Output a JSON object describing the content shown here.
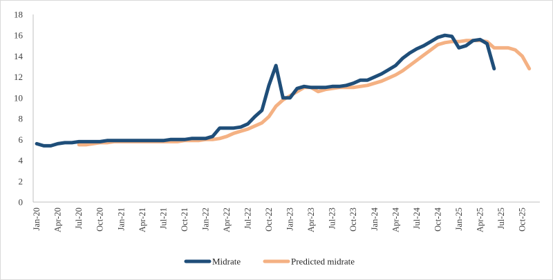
{
  "chart_data": {
    "type": "line",
    "title": "",
    "xlabel": "",
    "ylabel": "",
    "ylim": [
      0,
      18
    ],
    "yticks": [
      0,
      2,
      4,
      6,
      8,
      10,
      12,
      14,
      16,
      18
    ],
    "x_start": "2020-01",
    "x_end": "2025-12",
    "x_tick_labels": [
      "Jan-20",
      "Apr-20",
      "Jul-20",
      "Oct-20",
      "Jan-21",
      "Apr-21",
      "Jul-21",
      "Oct-21",
      "Jan-22",
      "Apr-22",
      "Jul-22",
      "Oct-22",
      "Jan-23",
      "Apr-23",
      "Jul-23",
      "Oct-23",
      "Jan-24",
      "Apr-24",
      "Jul-24",
      "Oct-24",
      "Jan-25",
      "Apr-25",
      "Jul-25",
      "Oct-25"
    ],
    "grid": false,
    "legend_position": "bottom",
    "series": [
      {
        "name": "Midrate",
        "color": "#1f4e79",
        "points": [
          [
            "2020-01",
            5.6
          ],
          [
            "2020-02",
            5.4
          ],
          [
            "2020-03",
            5.4
          ],
          [
            "2020-04",
            5.6
          ],
          [
            "2020-05",
            5.7
          ],
          [
            "2020-06",
            5.7
          ],
          [
            "2020-07",
            5.8
          ],
          [
            "2020-08",
            5.8
          ],
          [
            "2020-09",
            5.8
          ],
          [
            "2020-10",
            5.8
          ],
          [
            "2020-11",
            5.9
          ],
          [
            "2020-12",
            5.9
          ],
          [
            "2021-01",
            5.9
          ],
          [
            "2021-02",
            5.9
          ],
          [
            "2021-03",
            5.9
          ],
          [
            "2021-04",
            5.9
          ],
          [
            "2021-05",
            5.9
          ],
          [
            "2021-06",
            5.9
          ],
          [
            "2021-07",
            5.9
          ],
          [
            "2021-08",
            6.0
          ],
          [
            "2021-09",
            6.0
          ],
          [
            "2021-10",
            6.0
          ],
          [
            "2021-11",
            6.1
          ],
          [
            "2021-12",
            6.1
          ],
          [
            "2022-01",
            6.1
          ],
          [
            "2022-02",
            6.3
          ],
          [
            "2022-03",
            7.1
          ],
          [
            "2022-04",
            7.1
          ],
          [
            "2022-05",
            7.1
          ],
          [
            "2022-06",
            7.2
          ],
          [
            "2022-07",
            7.5
          ],
          [
            "2022-08",
            8.2
          ],
          [
            "2022-09",
            8.8
          ],
          [
            "2022-10",
            11.2
          ],
          [
            "2022-11",
            13.1
          ],
          [
            "2022-12",
            10.0
          ],
          [
            "2023-01",
            10.0
          ],
          [
            "2023-02",
            10.9
          ],
          [
            "2023-03",
            11.1
          ],
          [
            "2023-04",
            11.0
          ],
          [
            "2023-05",
            11.0
          ],
          [
            "2023-06",
            11.0
          ],
          [
            "2023-07",
            11.1
          ],
          [
            "2023-08",
            11.1
          ],
          [
            "2023-09",
            11.2
          ],
          [
            "2023-10",
            11.4
          ],
          [
            "2023-11",
            11.7
          ],
          [
            "2023-12",
            11.7
          ],
          [
            "2024-01",
            12.0
          ],
          [
            "2024-02",
            12.3
          ],
          [
            "2024-03",
            12.7
          ],
          [
            "2024-04",
            13.1
          ],
          [
            "2024-05",
            13.8
          ],
          [
            "2024-06",
            14.3
          ],
          [
            "2024-07",
            14.7
          ],
          [
            "2024-08",
            15.0
          ],
          [
            "2024-09",
            15.4
          ],
          [
            "2024-10",
            15.8
          ],
          [
            "2024-11",
            16.0
          ],
          [
            "2024-12",
            15.9
          ],
          [
            "2025-01",
            14.8
          ],
          [
            "2025-02",
            15.0
          ],
          [
            "2025-03",
            15.5
          ],
          [
            "2025-04",
            15.6
          ],
          [
            "2025-05",
            15.2
          ],
          [
            "2025-06",
            12.8
          ]
        ]
      },
      {
        "name": "Predicted midrate",
        "color": "#f4b183",
        "points": [
          [
            "2020-07",
            5.5
          ],
          [
            "2020-08",
            5.5
          ],
          [
            "2020-09",
            5.6
          ],
          [
            "2020-10",
            5.7
          ],
          [
            "2020-11",
            5.7
          ],
          [
            "2020-12",
            5.8
          ],
          [
            "2021-01",
            5.8
          ],
          [
            "2021-02",
            5.8
          ],
          [
            "2021-03",
            5.8
          ],
          [
            "2021-04",
            5.8
          ],
          [
            "2021-05",
            5.8
          ],
          [
            "2021-06",
            5.8
          ],
          [
            "2021-07",
            5.8
          ],
          [
            "2021-08",
            5.8
          ],
          [
            "2021-09",
            5.8
          ],
          [
            "2021-10",
            5.9
          ],
          [
            "2021-11",
            5.9
          ],
          [
            "2021-12",
            5.9
          ],
          [
            "2022-01",
            6.0
          ],
          [
            "2022-02",
            6.0
          ],
          [
            "2022-03",
            6.1
          ],
          [
            "2022-04",
            6.3
          ],
          [
            "2022-05",
            6.6
          ],
          [
            "2022-06",
            6.8
          ],
          [
            "2022-07",
            7.0
          ],
          [
            "2022-08",
            7.3
          ],
          [
            "2022-09",
            7.6
          ],
          [
            "2022-10",
            8.2
          ],
          [
            "2022-11",
            9.2
          ],
          [
            "2022-12",
            9.8
          ],
          [
            "2023-01",
            10.2
          ],
          [
            "2023-02",
            10.6
          ],
          [
            "2023-03",
            11.0
          ],
          [
            "2023-04",
            11.0
          ],
          [
            "2023-05",
            10.6
          ],
          [
            "2023-06",
            10.8
          ],
          [
            "2023-07",
            10.9
          ],
          [
            "2023-08",
            11.0
          ],
          [
            "2023-09",
            11.0
          ],
          [
            "2023-10",
            11.0
          ],
          [
            "2023-11",
            11.1
          ],
          [
            "2023-12",
            11.2
          ],
          [
            "2024-01",
            11.4
          ],
          [
            "2024-02",
            11.6
          ],
          [
            "2024-03",
            11.9
          ],
          [
            "2024-04",
            12.2
          ],
          [
            "2024-05",
            12.6
          ],
          [
            "2024-06",
            13.1
          ],
          [
            "2024-07",
            13.6
          ],
          [
            "2024-08",
            14.1
          ],
          [
            "2024-09",
            14.6
          ],
          [
            "2024-10",
            15.1
          ],
          [
            "2024-11",
            15.3
          ],
          [
            "2024-12",
            15.4
          ],
          [
            "2025-01",
            15.4
          ],
          [
            "2025-02",
            15.5
          ],
          [
            "2025-03",
            15.5
          ],
          [
            "2025-04",
            15.5
          ],
          [
            "2025-05",
            15.4
          ],
          [
            "2025-06",
            14.8
          ],
          [
            "2025-07",
            14.8
          ],
          [
            "2025-08",
            14.8
          ],
          [
            "2025-09",
            14.6
          ],
          [
            "2025-10",
            14.0
          ],
          [
            "2025-11",
            12.8
          ]
        ]
      }
    ]
  }
}
